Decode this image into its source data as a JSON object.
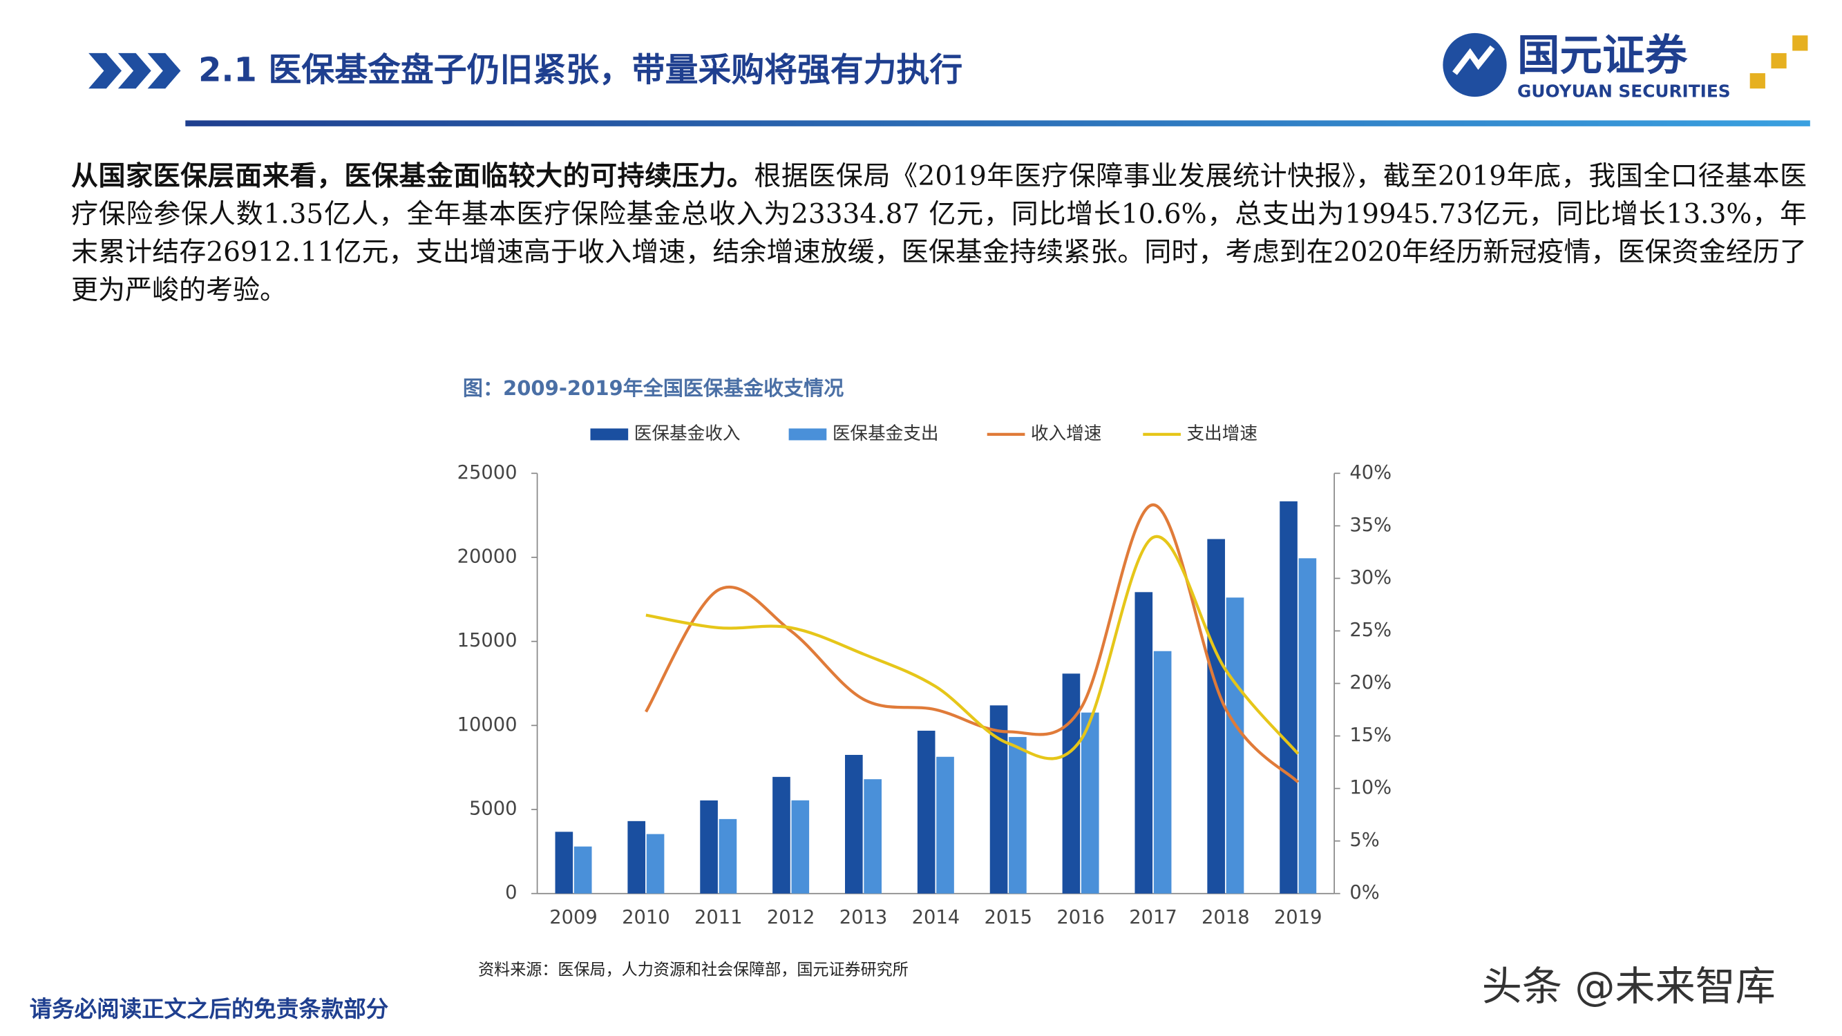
{
  "header": {
    "title": "2.1 医保基金盘子仍旧紧张，带量采购将强有力执行",
    "logo_cn": "国元证券",
    "logo_en": "GUOYUAN SECURITIES"
  },
  "body": {
    "lead": "从国家医保层面来看，医保基金面临较大的可持续压力。",
    "text": "根据医保局《2019年医疗保障事业发展统计快报》，截至2019年底，我国全口径基本医疗保险参保人数1.35亿人，全年基本医疗保险基金总收入为23334.87 亿元，同比增长10.6%，总支出为19945.73亿元，同比增长13.3%，年末累计结存26912.11亿元，支出增速高于收入增速，结余增速放缓，医保基金持续紧张。同时，考虑到在2020年经历新冠疫情，医保资金经历了更为严峻的考验。"
  },
  "chart_data": {
    "type": "bar-line",
    "title": "图：2009-2019年全国医保基金收支情况",
    "categories": [
      "2009",
      "2010",
      "2011",
      "2012",
      "2013",
      "2014",
      "2015",
      "2016",
      "2017",
      "2018",
      "2019"
    ],
    "series": [
      {
        "name": "医保基金收入",
        "type": "bar",
        "color": "#1a4fa0",
        "values": [
          3672,
          4309,
          5539,
          6939,
          8248,
          9687,
          11193,
          13084,
          17932,
          21090,
          23335
        ]
      },
      {
        "name": "医保基金支出",
        "type": "bar",
        "color": "#4a90d9",
        "values": [
          2797,
          3538,
          4431,
          5544,
          6801,
          8134,
          9312,
          10767,
          14422,
          17608,
          19946
        ]
      },
      {
        "name": "收入增速",
        "type": "line",
        "axis": "y2",
        "color": "#e07b39",
        "values": [
          null,
          17.3,
          28.9,
          25.0,
          18.5,
          17.5,
          15.4,
          17.6,
          37.0,
          17.6,
          10.6
        ]
      },
      {
        "name": "支出增速",
        "type": "line",
        "axis": "y2",
        "color": "#e6c619",
        "values": [
          null,
          26.5,
          25.3,
          25.3,
          22.8,
          19.7,
          14.3,
          14.6,
          33.9,
          21.3,
          13.3
        ]
      }
    ],
    "ylim": [
      0,
      25000
    ],
    "yticks": [
      0,
      5000,
      10000,
      15000,
      20000,
      25000
    ],
    "y2lim": [
      0,
      40
    ],
    "y2ticks": [
      {
        "value": 0,
        "label": "0%"
      },
      {
        "value": 5,
        "label": "5%"
      },
      {
        "value": 10,
        "label": "10%"
      },
      {
        "value": 15,
        "label": "15%"
      },
      {
        "value": 20,
        "label": "20%"
      },
      {
        "value": 25,
        "label": "25%"
      },
      {
        "value": 30,
        "label": "30%"
      },
      {
        "value": 35,
        "label": "35%"
      },
      {
        "value": 40,
        "label": "40%"
      }
    ],
    "grid": false,
    "legend": "top",
    "source": "资料来源：医保局，人力资源和社会保障部，国元证券研究所"
  },
  "footer": {
    "disclaimer": "请务必阅读正文之后的免责条款部分",
    "watermark": "头条 @未来智库"
  }
}
